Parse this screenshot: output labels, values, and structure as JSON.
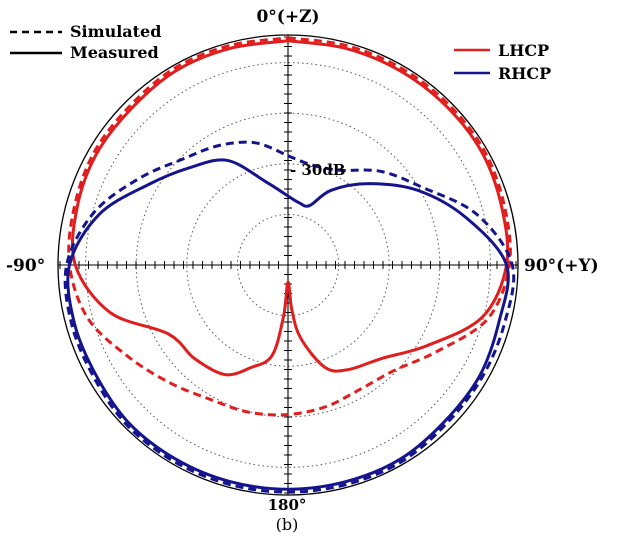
{
  "chart_data": {
    "type": "polar-line",
    "title": "",
    "caption": "(b)",
    "angle_labels": {
      "top": "0°(+Z)",
      "right": "90°(+Y)",
      "left": "-90°",
      "bottom": "180°"
    },
    "radial_label": "- 30dB",
    "radial_scale": {
      "center_db": -40,
      "outer_db": 0,
      "ring_step_db": 10,
      "rings": 4
    },
    "grid": true,
    "style_legend": [
      {
        "label": "Simulated",
        "dash": "dashed"
      },
      {
        "label": "Measured",
        "dash": "solid"
      }
    ],
    "series_legend": [
      {
        "label": "LHCP",
        "color": "#e01e1e"
      },
      {
        "label": "RHCP",
        "color": "#14148c"
      }
    ],
    "series": [
      {
        "name": "LHCP",
        "type": "Measured",
        "color": "#e01e1e",
        "dash": "solid",
        "angles_deg": [
          0,
          15,
          30,
          45,
          60,
          75,
          90,
          105,
          120,
          135,
          150,
          160,
          170,
          175,
          180,
          185,
          190,
          200,
          210,
          225,
          240,
          255,
          270,
          285,
          300,
          315,
          330,
          345,
          360
        ],
        "gain_db": [
          -1,
          -1,
          -1,
          -1,
          -1,
          -1.5,
          -2,
          -5,
          -12,
          -17,
          -19,
          -21,
          -27,
          -32,
          -37,
          -31,
          -24,
          -21,
          -18,
          -17,
          -16,
          -8,
          -3,
          -2,
          -1.5,
          -1.5,
          -1,
          -1,
          -1
        ]
      },
      {
        "name": "LHCP",
        "type": "Simulated",
        "color": "#e01e1e",
        "dash": "dashed",
        "angles_deg": [
          0,
          15,
          30,
          45,
          60,
          75,
          90,
          105,
          120,
          135,
          150,
          165,
          180,
          195,
          210,
          225,
          240,
          255,
          270,
          285,
          300,
          315,
          330,
          345,
          360
        ],
        "gain_db": [
          -0.5,
          -0.5,
          -0.5,
          -0.5,
          -0.5,
          -1,
          -1.5,
          -4,
          -10,
          -14,
          -15,
          -14.5,
          -14,
          -13.5,
          -13,
          -11,
          -8,
          -4,
          -2,
          -1.5,
          -1,
          -1,
          -0.5,
          -0.5,
          -0.5
        ]
      },
      {
        "name": "RHCP",
        "type": "Measured",
        "color": "#14148c",
        "dash": "solid",
        "angles_deg": [
          0,
          10,
          20,
          30,
          45,
          60,
          75,
          90,
          105,
          120,
          135,
          150,
          165,
          180,
          195,
          210,
          225,
          240,
          255,
          270,
          285,
          300,
          315,
          330,
          345,
          360
        ],
        "gain_db": [
          -28,
          -29,
          -29,
          -25,
          -20,
          -14,
          -8,
          -2,
          -2,
          -1.5,
          -1.5,
          -1,
          -1,
          -1,
          -1,
          -1,
          -1,
          -1.5,
          -1.5,
          -2,
          -6,
          -12,
          -16,
          -19,
          -25,
          -28
        ]
      },
      {
        "name": "RHCP",
        "type": "Simulated",
        "color": "#14148c",
        "dash": "dashed",
        "angles_deg": [
          0,
          10,
          20,
          30,
          45,
          60,
          75,
          90,
          105,
          120,
          135,
          150,
          165,
          180,
          195,
          210,
          225,
          240,
          255,
          270,
          285,
          300,
          315,
          330,
          345,
          360
        ],
        "gain_db": [
          -21,
          -22,
          -22,
          -21,
          -17,
          -13,
          -6,
          -1,
          -1,
          -1,
          -1,
          -0.5,
          -0.5,
          -0.5,
          -0.5,
          -0.5,
          -0.5,
          -1,
          -1,
          -1.5,
          -5,
          -10,
          -14,
          -16,
          -18,
          -21
        ]
      }
    ]
  }
}
